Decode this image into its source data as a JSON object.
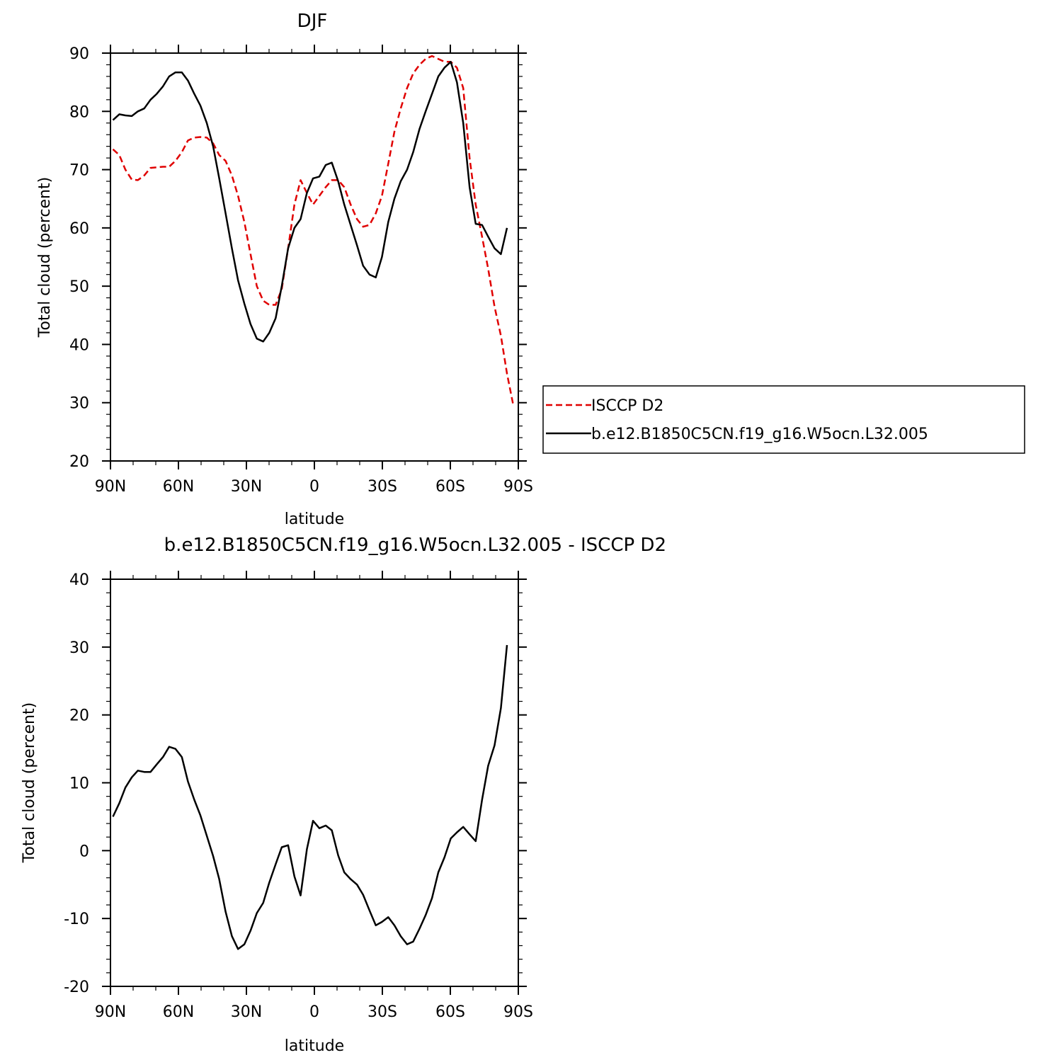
{
  "colors": {
    "model": "#000000",
    "obs": "#e00000",
    "background": "#ffffff"
  },
  "chart_data": [
    {
      "type": "line",
      "title": "DJF",
      "xlabel": "latitude",
      "ylabel": "Total cloud (percent)",
      "xlim": [
        90,
        -90
      ],
      "ylim": [
        20,
        90
      ],
      "xticks": [
        90,
        60,
        30,
        0,
        -30,
        -60,
        -90
      ],
      "xtick_labels": [
        "90N",
        "60N",
        "30N",
        "0",
        "30S",
        "60S",
        "90S"
      ],
      "yticks": [
        20,
        30,
        40,
        50,
        60,
        70,
        80,
        90
      ],
      "ytick_labels": [
        "20",
        "30",
        "40",
        "50",
        "60",
        "70",
        "80",
        "90"
      ],
      "legend": "right",
      "series": [
        {
          "name": "ISCCP D2",
          "style": "dashed",
          "color": "#e00000",
          "x": [
            88.9,
            86.1,
            83.4,
            80.6,
            77.9,
            75.1,
            72.3,
            69.6,
            66.8,
            64.1,
            61.3,
            58.5,
            55.8,
            53.0,
            50.3,
            47.5,
            44.7,
            42.0,
            39.2,
            36.4,
            33.7,
            30.9,
            28.2,
            25.4,
            22.6,
            19.9,
            17.1,
            14.4,
            11.6,
            8.8,
            6.1,
            3.3,
            0.6,
            -2.2,
            -5.0,
            -7.7,
            -10.5,
            -13.2,
            -16.0,
            -18.8,
            -21.5,
            -24.3,
            -27.1,
            -29.8,
            -32.6,
            -35.3,
            -38.1,
            -40.9,
            -43.6,
            -46.4,
            -49.1,
            -51.9,
            -54.7,
            -57.4,
            -60.2,
            -62.9,
            -65.7,
            -68.5,
            -71.2,
            -74.0,
            -76.7,
            -79.5,
            -82.3,
            -85.0,
            -87.8
          ],
          "y": [
            73.5,
            72.5,
            70.0,
            68.3,
            68.2,
            69.0,
            70.3,
            70.4,
            70.5,
            70.5,
            71.5,
            73.0,
            75.0,
            75.5,
            75.6,
            75.5,
            74.5,
            72.5,
            71.5,
            69.0,
            65.5,
            61.0,
            55.5,
            50.0,
            47.5,
            46.8,
            46.8,
            49.5,
            56.5,
            64.0,
            68.2,
            66.0,
            64.0,
            65.5,
            67.0,
            68.2,
            68.2,
            67.0,
            64.0,
            61.5,
            60.2,
            60.5,
            62.5,
            65.5,
            71.0,
            76.5,
            80.5,
            84.0,
            86.5,
            88.0,
            89.0,
            89.5,
            89.0,
            88.5,
            88.5,
            87.5,
            84.0,
            72.0,
            64.0,
            58.5,
            53.0,
            46.5,
            41.5,
            35.0,
            29.5
          ]
        },
        {
          "name": "b.e12.B1850C5CN.f19_g16.W5ocn.L32.005",
          "style": "solid",
          "color": "#000000",
          "x": [
            88.9,
            86.1,
            83.4,
            80.6,
            77.9,
            75.1,
            72.3,
            69.6,
            66.8,
            64.1,
            61.3,
            58.5,
            55.8,
            53.0,
            50.3,
            47.5,
            44.7,
            42.0,
            39.2,
            36.4,
            33.7,
            30.9,
            28.2,
            25.4,
            22.6,
            19.9,
            17.1,
            14.4,
            11.6,
            8.8,
            6.1,
            3.3,
            0.6,
            -2.2,
            -5.0,
            -7.7,
            -10.5,
            -13.2,
            -16.0,
            -18.8,
            -21.5,
            -24.3,
            -27.1,
            -29.8,
            -32.6,
            -35.3,
            -38.1,
            -40.9,
            -43.6,
            -46.4,
            -49.1,
            -51.9,
            -54.7,
            -57.4,
            -60.2,
            -62.9,
            -65.7,
            -68.5,
            -71.2,
            -74.0,
            -76.7,
            -79.5,
            -82.3,
            -85.0,
            -87.8
          ],
          "y": [
            78.5,
            79.5,
            79.3,
            79.2,
            80.0,
            80.5,
            82.0,
            83.0,
            84.3,
            86.0,
            86.7,
            86.7,
            85.3,
            83.0,
            81.0,
            78.0,
            74.0,
            68.5,
            62.5,
            56.5,
            51.0,
            47.0,
            43.5,
            41.0,
            40.5,
            42.0,
            44.5,
            50.0,
            56.5,
            60.0,
            61.5,
            66.0,
            68.5,
            68.8,
            70.8,
            71.2,
            68.0,
            64.0,
            60.5,
            57.0,
            53.5,
            52.0,
            51.5,
            55.0,
            61.0,
            65.0,
            68.0,
            70.0,
            73.0,
            77.0,
            80.0,
            83.0,
            86.0,
            87.5,
            88.5,
            85.0,
            78.0,
            67.0,
            60.7,
            60.5,
            58.5,
            56.5,
            55.5,
            60.0,
            null
          ]
        }
      ]
    },
    {
      "type": "line",
      "title": "b.e12.B1850C5CN.f19_g16.W5ocn.L32.005 - ISCCP D2",
      "xlabel": "latitude",
      "ylabel": "Total cloud (percent)",
      "xlim": [
        90,
        -90
      ],
      "ylim": [
        -20,
        40
      ],
      "xticks": [
        90,
        60,
        30,
        0,
        -30,
        -60,
        -90
      ],
      "xtick_labels": [
        "90N",
        "60N",
        "30N",
        "0",
        "30S",
        "60S",
        "90S"
      ],
      "yticks": [
        -20,
        -10,
        0,
        10,
        20,
        30,
        40
      ],
      "ytick_labels": [
        "-20",
        "-10",
        "0",
        "10",
        "20",
        "30",
        "40"
      ],
      "series": [
        {
          "style": "solid",
          "color": "#000000",
          "x": [
            88.9,
            86.1,
            83.4,
            80.6,
            77.9,
            75.1,
            72.3,
            69.6,
            66.8,
            64.1,
            61.3,
            58.5,
            55.8,
            53.0,
            50.3,
            47.5,
            44.7,
            42.0,
            39.2,
            36.4,
            33.7,
            30.9,
            28.2,
            25.4,
            22.6,
            19.9,
            17.1,
            14.4,
            11.6,
            8.8,
            6.1,
            3.3,
            0.6,
            -2.2,
            -5.0,
            -7.7,
            -10.5,
            -13.2,
            -16.0,
            -18.8,
            -21.5,
            -24.3,
            -27.1,
            -29.8,
            -32.6,
            -35.3,
            -38.1,
            -40.9,
            -43.6,
            -46.4,
            -49.1,
            -51.9,
            -54.7,
            -57.4,
            -60.2,
            -62.9,
            -65.7,
            -68.5,
            -71.2,
            -74.0,
            -76.7,
            -79.5,
            -82.3,
            -85.0,
            -87.8
          ],
          "y": [
            5.0,
            7.0,
            9.3,
            10.8,
            11.8,
            11.6,
            11.6,
            12.7,
            13.8,
            15.3,
            15.0,
            13.8,
            10.2,
            7.5,
            5.2,
            2.2,
            -0.8,
            -4.2,
            -9.0,
            -12.6,
            -14.5,
            -13.8,
            -11.8,
            -9.2,
            -7.7,
            -4.7,
            -2.0,
            0.5,
            0.8,
            -3.8,
            -6.6,
            0.2,
            4.4,
            3.3,
            3.7,
            3.0,
            -0.7,
            -3.2,
            -4.2,
            -5.0,
            -6.5,
            -8.8,
            -11.0,
            -10.5,
            -9.8,
            -11.0,
            -12.6,
            -13.8,
            -13.4,
            -11.5,
            -9.5,
            -7.0,
            -3.2,
            -1.0,
            1.8,
            2.7,
            3.5,
            2.4,
            1.4,
            7.5,
            12.5,
            15.5,
            21.0,
            30.3,
            null
          ]
        }
      ]
    }
  ]
}
